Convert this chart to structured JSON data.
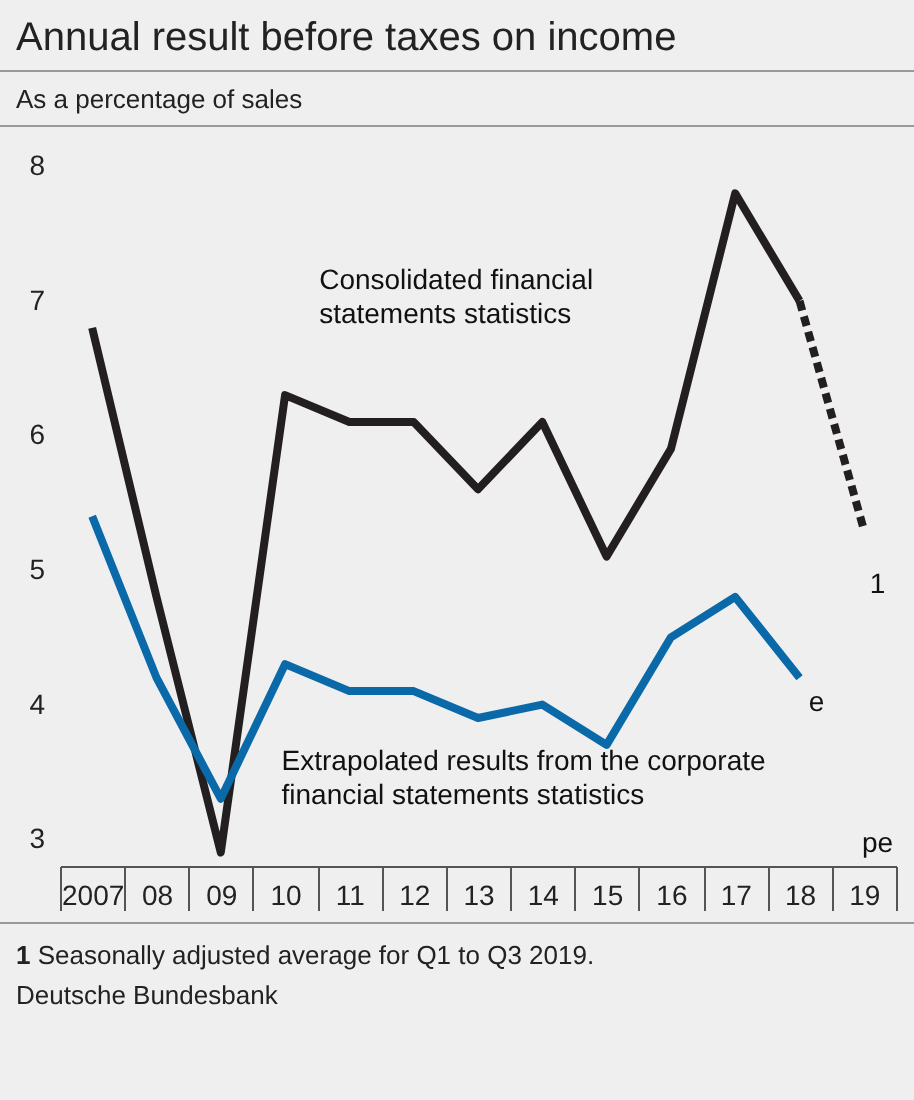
{
  "chart_data": {
    "type": "line",
    "title": "Annual result before taxes on income",
    "subtitle": "As a percentage of sales",
    "categories": [
      "2007",
      "08",
      "09",
      "10",
      "11",
      "12",
      "13",
      "14",
      "15",
      "16",
      "17",
      "18",
      "19"
    ],
    "series": [
      {
        "name": "Consolidated financial statements statistics",
        "color": "#231f20",
        "values": [
          6.8,
          4.8,
          2.9,
          6.3,
          6.1,
          6.1,
          5.6,
          6.1,
          5.1,
          5.9,
          7.8,
          7.0,
          null
        ]
      },
      {
        "color": "#231f20",
        "line_style": "dashed",
        "values": [
          null,
          null,
          null,
          null,
          null,
          null,
          null,
          null,
          null,
          null,
          null,
          7.0,
          5.3
        ]
      },
      {
        "name": "Extrapolated results from the corporate financial statements statistics",
        "color": "#0a69a8",
        "values": [
          5.4,
          4.2,
          3.3,
          4.3,
          4.1,
          4.1,
          3.9,
          4.0,
          3.7,
          4.5,
          4.8,
          4.2,
          null
        ]
      }
    ],
    "ylim": [
      2.8,
      8.3
    ],
    "yticks": [
      3,
      4,
      5,
      6,
      7,
      8
    ],
    "grid": false,
    "line_style": "solid",
    "marker": "none",
    "annotations": [
      "1",
      "e",
      "pe",
      "1 Seasonally adjusted average for Q1 to Q3 2019.",
      "Deutsche Bundesbank"
    ]
  }
}
